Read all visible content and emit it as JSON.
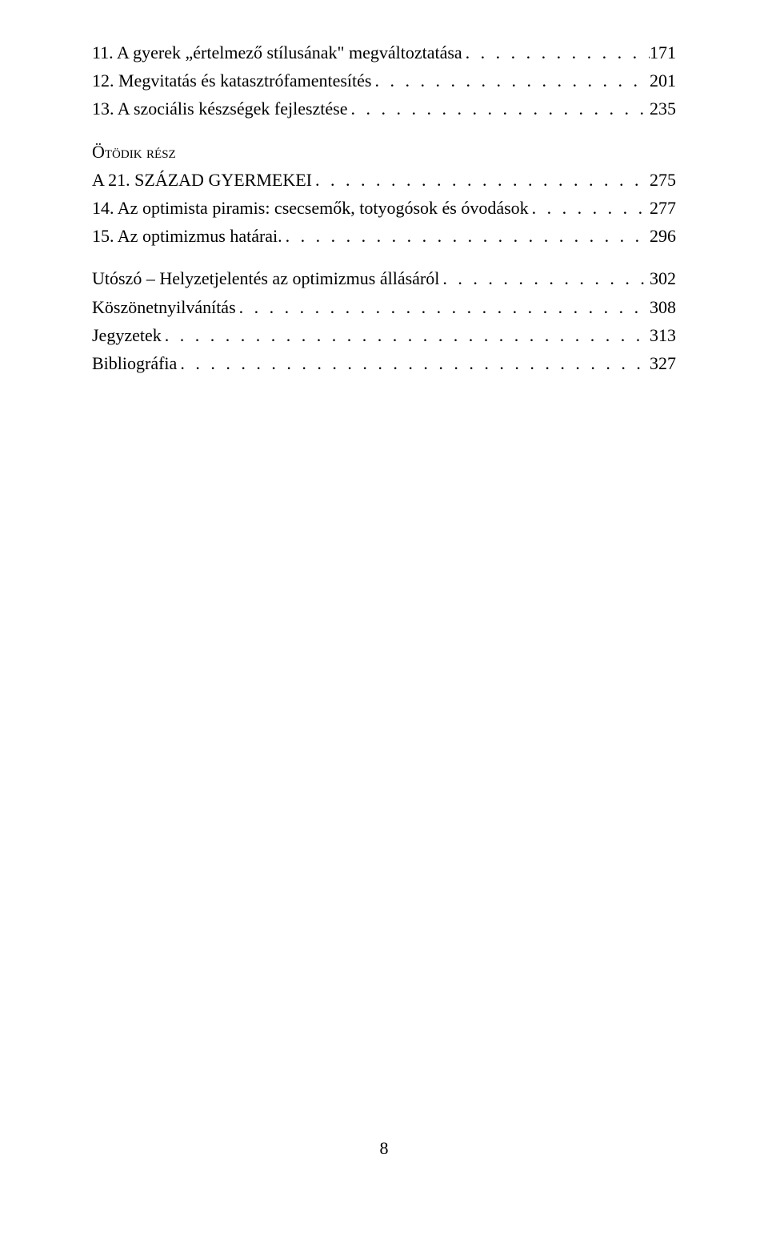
{
  "entries": [
    {
      "label": "11. A gyerek „értelmező stílusának\" megváltoztatása",
      "page": "171"
    },
    {
      "label": "12. Megvitatás és katasztrófamentesítés",
      "page": "201"
    },
    {
      "label": "13. A szociális készségek fejlesztése",
      "page": "235"
    }
  ],
  "section": {
    "part": "Ötödik rész",
    "title_label": "A 21. SZÁZAD GYERMEKEI",
    "title_page": "275"
  },
  "entries2": [
    {
      "label": "14. Az optimista piramis: csecsemők, totyogósok és óvodások",
      "page": "277"
    },
    {
      "label": "15. Az optimizmus határai.",
      "page": "296"
    }
  ],
  "entries3": [
    {
      "label": "Utószó – Helyzetjelentés az optimizmus állásáról",
      "page": "302"
    },
    {
      "label": "Köszönetnyilvánítás",
      "page": "308"
    },
    {
      "label": "Jegyzetek",
      "page": "313"
    },
    {
      "label": "Bibliográfia",
      "page": "327"
    }
  ],
  "page_number": "8"
}
